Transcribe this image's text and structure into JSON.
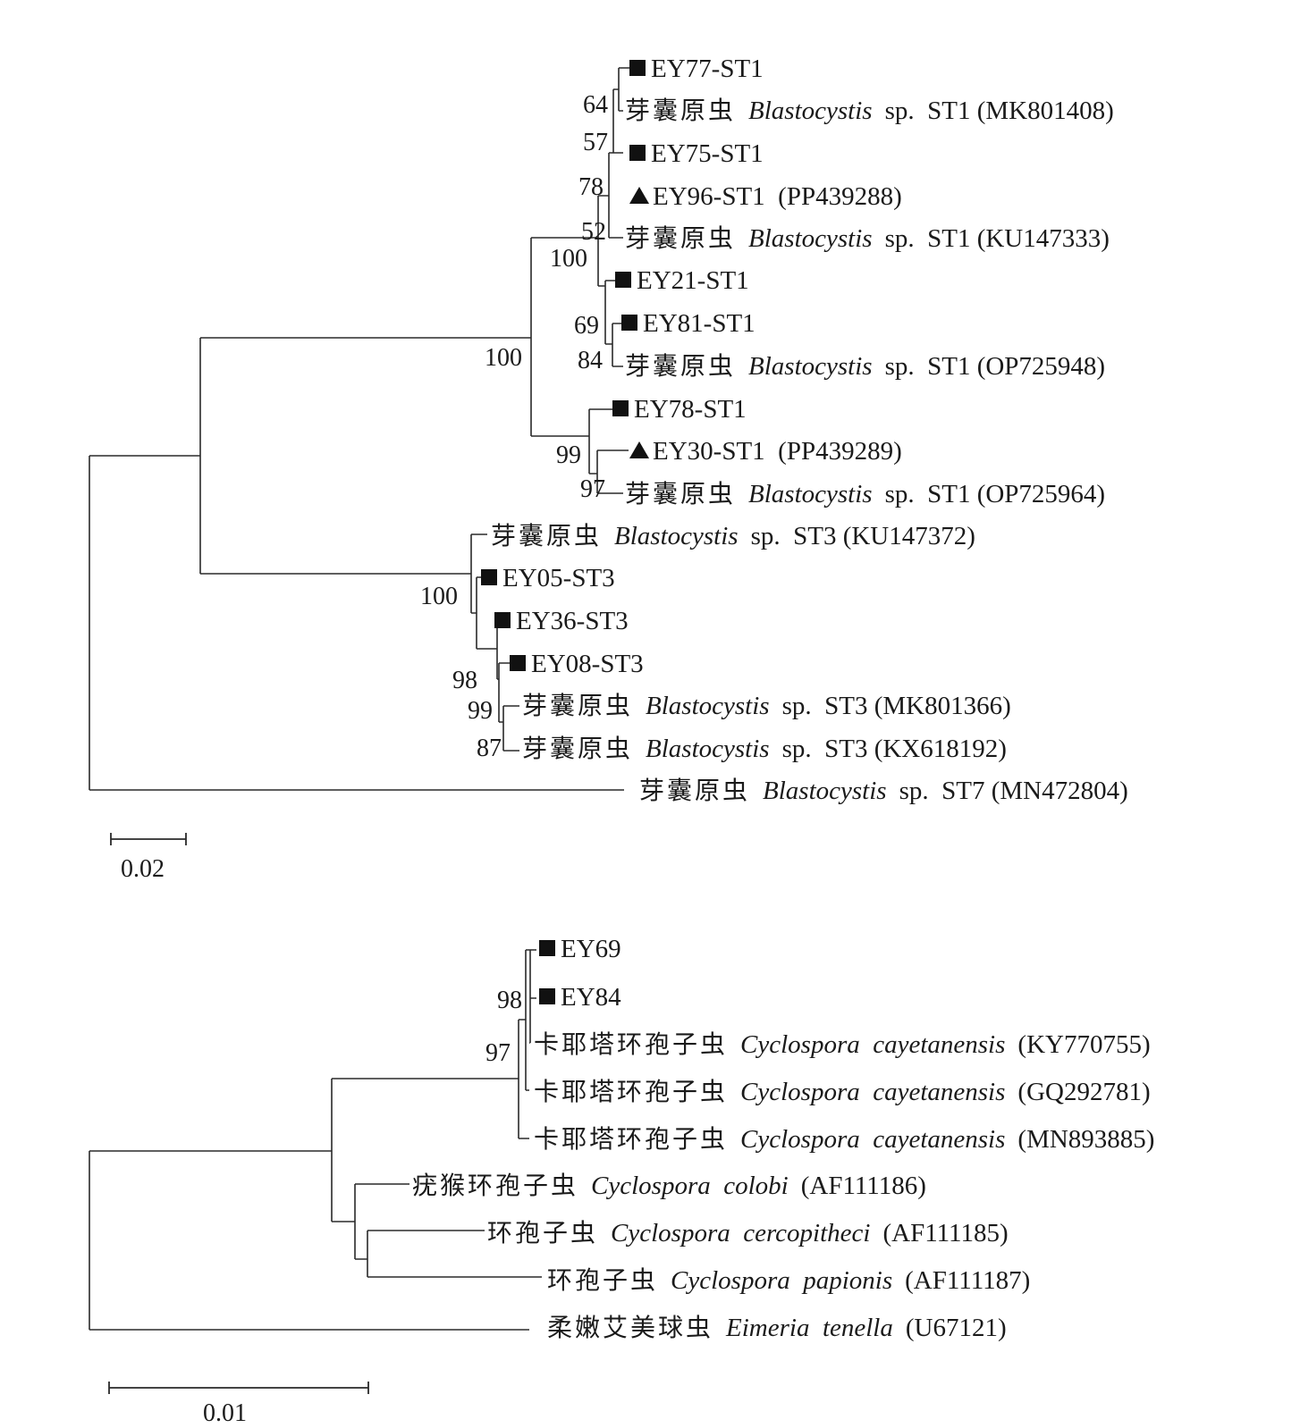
{
  "tree1": {
    "bootstrap": [
      "64",
      "57",
      "78",
      "52",
      "100",
      "69",
      "84",
      "100",
      "99",
      "97",
      "100",
      "98",
      "99",
      "87"
    ],
    "taxa": [
      {
        "marker": "square",
        "id": "EY77-ST1",
        "cn": "",
        "sp": "",
        "suffix": ""
      },
      {
        "marker": "",
        "id": "",
        "cn": "芽囊原虫",
        "sp": "Blastocystis",
        "suffix": "sp.  ST1 (MK801408)"
      },
      {
        "marker": "square",
        "id": "EY75-ST1",
        "cn": "",
        "sp": "",
        "suffix": ""
      },
      {
        "marker": "triangle",
        "id": "EY96-ST1  (PP439288)",
        "cn": "",
        "sp": "",
        "suffix": ""
      },
      {
        "marker": "",
        "id": "",
        "cn": "芽囊原虫",
        "sp": "Blastocystis",
        "suffix": "sp.  ST1 (KU147333)"
      },
      {
        "marker": "square",
        "id": "EY21-ST1",
        "cn": "",
        "sp": "",
        "suffix": ""
      },
      {
        "marker": "square",
        "id": "EY81-ST1",
        "cn": "",
        "sp": "",
        "suffix": ""
      },
      {
        "marker": "",
        "id": "",
        "cn": "芽囊原虫",
        "sp": "Blastocystis",
        "suffix": "sp.  ST1 (OP725948)"
      },
      {
        "marker": "square",
        "id": "EY78-ST1",
        "cn": "",
        "sp": "",
        "suffix": ""
      },
      {
        "marker": "triangle",
        "id": "EY30-ST1  (PP439289)",
        "cn": "",
        "sp": "",
        "suffix": ""
      },
      {
        "marker": "",
        "id": "",
        "cn": "芽囊原虫",
        "sp": "Blastocystis",
        "suffix": "sp.  ST1 (OP725964)"
      },
      {
        "marker": "",
        "id": "",
        "cn": "芽囊原虫",
        "sp": "Blastocystis",
        "suffix": "sp.  ST3 (KU147372)"
      },
      {
        "marker": "square",
        "id": "EY05-ST3",
        "cn": "",
        "sp": "",
        "suffix": ""
      },
      {
        "marker": "square",
        "id": "EY36-ST3",
        "cn": "",
        "sp": "",
        "suffix": ""
      },
      {
        "marker": "square",
        "id": "EY08-ST3",
        "cn": "",
        "sp": "",
        "suffix": ""
      },
      {
        "marker": "",
        "id": "",
        "cn": "芽囊原虫",
        "sp": "Blastocystis",
        "suffix": "sp.  ST3 (MK801366)"
      },
      {
        "marker": "",
        "id": "",
        "cn": "芽囊原虫",
        "sp": "Blastocystis",
        "suffix": "sp.  ST3 (KX618192)"
      },
      {
        "marker": "",
        "id": "",
        "cn": "芽囊原虫",
        "sp": "Blastocystis",
        "suffix": "sp.  ST7 (MN472804)"
      }
    ],
    "scale_label": "0.02"
  },
  "tree2": {
    "bootstrap": [
      "98",
      "97"
    ],
    "taxa": [
      {
        "marker": "square",
        "id": "EY69",
        "cn": "",
        "sp": "",
        "suffix": ""
      },
      {
        "marker": "square",
        "id": "EY84",
        "cn": "",
        "sp": "",
        "suffix": ""
      },
      {
        "marker": "",
        "id": "",
        "cn": "卡耶塔环孢子虫",
        "sp": "Cyclospora  cayetanensis",
        "suffix": "(KY770755)"
      },
      {
        "marker": "",
        "id": "",
        "cn": "卡耶塔环孢子虫",
        "sp": "Cyclospora  cayetanensis",
        "suffix": "(GQ292781)"
      },
      {
        "marker": "",
        "id": "",
        "cn": "卡耶塔环孢子虫",
        "sp": "Cyclospora  cayetanensis",
        "suffix": "(MN893885)"
      },
      {
        "marker": "",
        "id": "",
        "cn": "疣猴环孢子虫",
        "sp": "Cyclospora  colobi",
        "suffix": "(AF111186)"
      },
      {
        "marker": "",
        "id": "",
        "cn": "环孢子虫",
        "sp": "Cyclospora  cercopitheci",
        "suffix": "(AF111185)"
      },
      {
        "marker": "",
        "id": "",
        "cn": "环孢子虫",
        "sp": "Cyclospora  papionis",
        "suffix": "(AF111187)"
      },
      {
        "marker": "",
        "id": "",
        "cn": "柔嫩艾美球虫",
        "sp": "Eimeria  tenella",
        "suffix": "(U67121)"
      }
    ],
    "scale_label": "0.01"
  }
}
